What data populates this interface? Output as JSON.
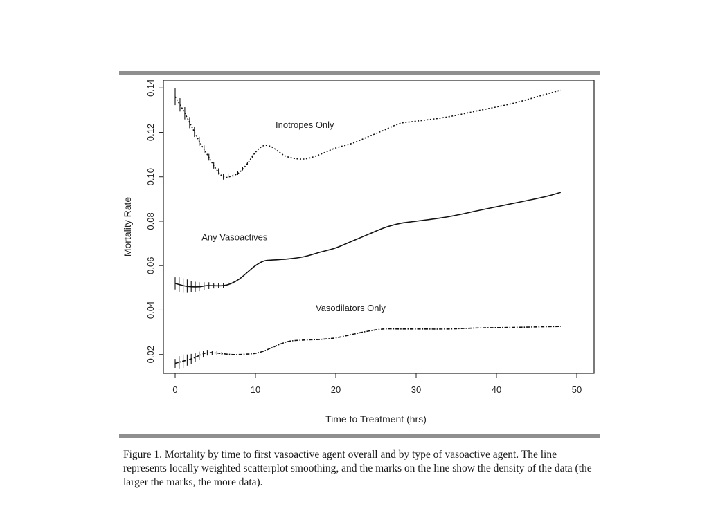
{
  "chart_data": {
    "type": "line",
    "title": "",
    "xlabel": "Time to Treatment (hrs)",
    "ylabel": "Mortality Rate",
    "xlim": [
      0,
      50
    ],
    "ylim": [
      0.0115,
      0.1435
    ],
    "x_ticks": [
      0,
      10,
      20,
      30,
      40,
      50
    ],
    "x_tick_labels": [
      "0",
      "10",
      "20",
      "30",
      "40",
      "50"
    ],
    "y_ticks": [
      0.02,
      0.04,
      0.06,
      0.08,
      0.1,
      0.12,
      0.14
    ],
    "y_tick_labels": [
      "0.02",
      "0.04",
      "0.06",
      "0.08",
      "0.10",
      "0.12",
      "0.14"
    ],
    "grid": false,
    "series": [
      {
        "name": "Inotropes Only",
        "style": "dotted",
        "label_at": [
          12.5,
          0.122
        ],
        "x": [
          0,
          1,
          2,
          3,
          4,
          5,
          6,
          7,
          8,
          9,
          10,
          11,
          12,
          13,
          14,
          16,
          18,
          20,
          22,
          24,
          26,
          28,
          30,
          34,
          38,
          42,
          46,
          48
        ],
        "y": [
          0.136,
          0.13,
          0.123,
          0.116,
          0.11,
          0.104,
          0.1,
          0.1003,
          0.102,
          0.106,
          0.111,
          0.114,
          0.1135,
          0.111,
          0.109,
          0.108,
          0.11,
          0.113,
          0.115,
          0.118,
          0.121,
          0.124,
          0.125,
          0.127,
          0.13,
          0.133,
          0.137,
          0.139
        ],
        "density_marks": [
          {
            "x": 0.0,
            "h": 0.0075
          },
          {
            "x": 0.6,
            "h": 0.006
          },
          {
            "x": 1.2,
            "h": 0.0055
          },
          {
            "x": 1.8,
            "h": 0.005
          },
          {
            "x": 2.4,
            "h": 0.0045
          },
          {
            "x": 3.0,
            "h": 0.004
          },
          {
            "x": 3.6,
            "h": 0.0035
          },
          {
            "x": 4.2,
            "h": 0.003
          },
          {
            "x": 4.8,
            "h": 0.003
          },
          {
            "x": 5.4,
            "h": 0.0028
          },
          {
            "x": 6.0,
            "h": 0.0025
          },
          {
            "x": 6.6,
            "h": 0.002
          },
          {
            "x": 7.2,
            "h": 0.0018
          },
          {
            "x": 7.8,
            "h": 0.0016
          },
          {
            "x": 8.4,
            "h": 0.0015
          },
          {
            "x": 9.0,
            "h": 0.0014
          },
          {
            "x": 9.6,
            "h": 0.0013
          }
        ]
      },
      {
        "name": "Any Vasoactives",
        "style": "solid",
        "label_at": [
          3.3,
          0.0715
        ],
        "x": [
          0,
          1,
          2,
          3,
          4,
          6,
          7,
          8,
          9,
          10,
          11,
          12,
          14,
          16,
          18,
          20,
          22,
          24,
          26,
          28,
          30,
          34,
          38,
          42,
          46,
          48
        ],
        "y": [
          0.052,
          0.051,
          0.0505,
          0.0505,
          0.051,
          0.051,
          0.052,
          0.054,
          0.057,
          0.06,
          0.062,
          0.0625,
          0.063,
          0.064,
          0.066,
          0.068,
          0.071,
          0.074,
          0.077,
          0.079,
          0.08,
          0.082,
          0.085,
          0.088,
          0.091,
          0.093
        ],
        "density_marks": [
          {
            "x": 0.0,
            "h": 0.0055
          },
          {
            "x": 0.5,
            "h": 0.0065
          },
          {
            "x": 1.0,
            "h": 0.0065
          },
          {
            "x": 1.5,
            "h": 0.006
          },
          {
            "x": 2.0,
            "h": 0.005
          },
          {
            "x": 2.5,
            "h": 0.0045
          },
          {
            "x": 3.0,
            "h": 0.004
          },
          {
            "x": 3.6,
            "h": 0.0035
          },
          {
            "x": 4.2,
            "h": 0.003
          },
          {
            "x": 4.8,
            "h": 0.0025
          },
          {
            "x": 5.4,
            "h": 0.0022
          },
          {
            "x": 6.0,
            "h": 0.002
          },
          {
            "x": 6.6,
            "h": 0.0018
          },
          {
            "x": 7.2,
            "h": 0.0015
          }
        ]
      },
      {
        "name": "Vasodilators Only",
        "style": "dashdot",
        "label_at": [
          17.5,
          0.0395
        ],
        "x": [
          0,
          1,
          2,
          3,
          4,
          5,
          6,
          7,
          8,
          9,
          10,
          11,
          12,
          14,
          16,
          18,
          20,
          22,
          24,
          26,
          28,
          30,
          34,
          38,
          42,
          46,
          48
        ],
        "y": [
          0.016,
          0.017,
          0.018,
          0.0195,
          0.0208,
          0.0207,
          0.0203,
          0.02,
          0.02,
          0.0202,
          0.0205,
          0.0215,
          0.023,
          0.0258,
          0.0265,
          0.0268,
          0.0275,
          0.029,
          0.0305,
          0.0315,
          0.0315,
          0.0315,
          0.0315,
          0.032,
          0.0322,
          0.0325,
          0.0326
        ],
        "density_marks": [
          {
            "x": 0.0,
            "h": 0.004
          },
          {
            "x": 0.5,
            "h": 0.0055
          },
          {
            "x": 1.0,
            "h": 0.006
          },
          {
            "x": 1.5,
            "h": 0.005
          },
          {
            "x": 2.0,
            "h": 0.0045
          },
          {
            "x": 2.5,
            "h": 0.004
          },
          {
            "x": 3.0,
            "h": 0.0035
          },
          {
            "x": 3.5,
            "h": 0.003
          },
          {
            "x": 4.0,
            "h": 0.0025
          },
          {
            "x": 4.6,
            "h": 0.002
          },
          {
            "x": 5.2,
            "h": 0.0018
          },
          {
            "x": 5.8,
            "h": 0.0015
          }
        ]
      }
    ]
  },
  "caption": "Figure 1.  Mortality by time to first vasoactive agent overall and by type of vasoactive agent. The line represents locally weighted scatterplot smoothing, and the marks on the line show the density of the data (the larger the marks, the more data)."
}
